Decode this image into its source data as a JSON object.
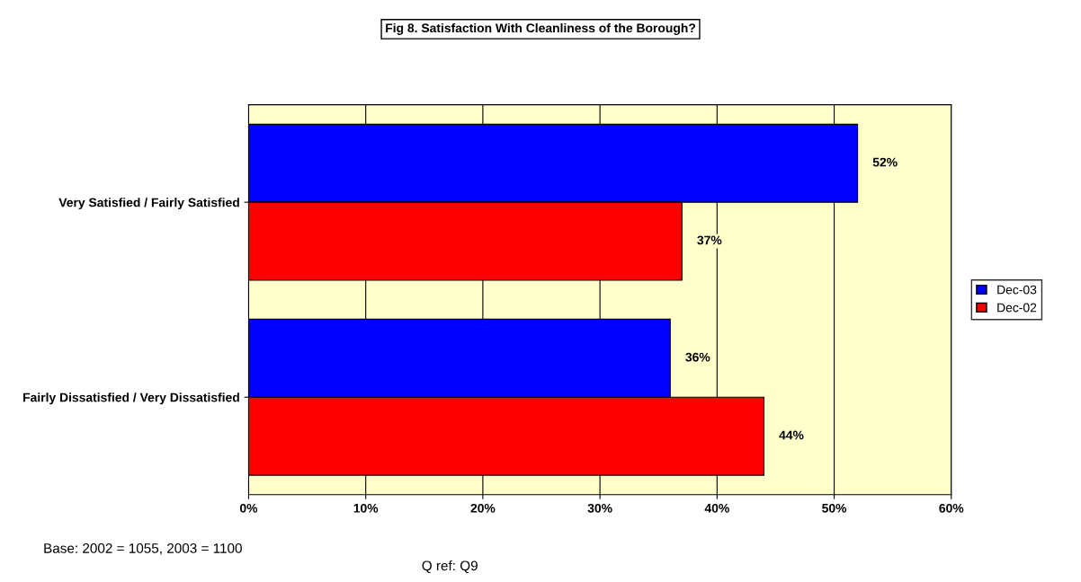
{
  "chart_data": {
    "type": "bar",
    "orientation": "horizontal",
    "title": "Fig 8. Satisfaction With Cleanliness of the Borough?",
    "categories": [
      "Very Satisfied / Fairly Satisfied",
      "Fairly Dissatisfied / Very Dissatisfied"
    ],
    "series": [
      {
        "name": "Dec-03",
        "color": "#0000ff",
        "values": [
          52,
          36
        ],
        "value_labels": [
          "52%",
          "36%"
        ]
      },
      {
        "name": "Dec-02",
        "color": "#ff0000",
        "values": [
          37,
          44
        ],
        "value_labels": [
          "37%",
          "44%"
        ]
      }
    ],
    "xlim": [
      0,
      60
    ],
    "xticks": [
      {
        "value": 0,
        "label": "0%"
      },
      {
        "value": 10,
        "label": "10%"
      },
      {
        "value": 20,
        "label": "20%"
      },
      {
        "value": 30,
        "label": "30%"
      },
      {
        "value": 40,
        "label": "40%"
      },
      {
        "value": 50,
        "label": "50%"
      },
      {
        "value": 60,
        "label": "60%"
      }
    ],
    "grid": "x",
    "legend": "right",
    "annotations": [
      "Base: 2002 = 1055, 2003 = 1100",
      "Q ref: Q9"
    ]
  }
}
